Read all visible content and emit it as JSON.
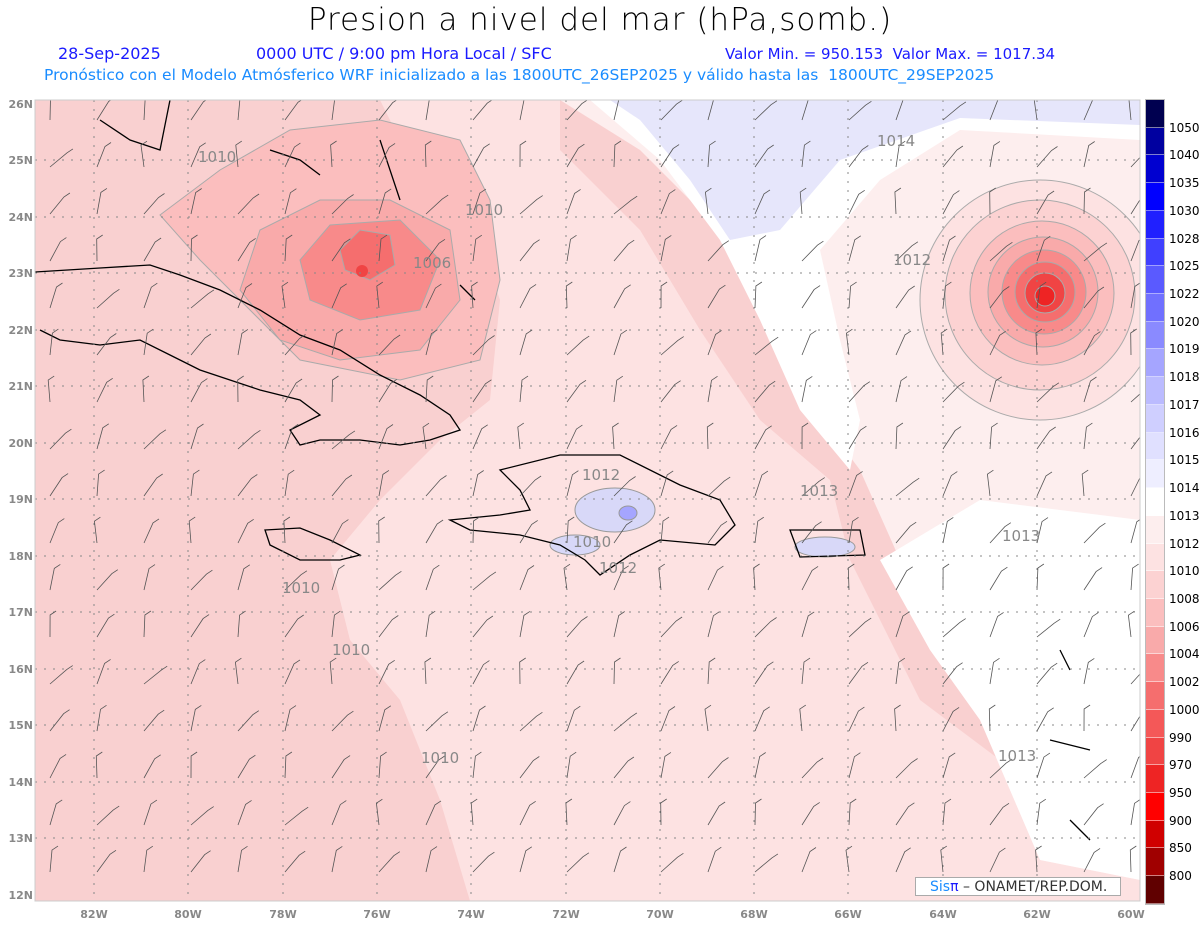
{
  "header": {
    "title": "Presion a nivel del mar (hPa,somb.)",
    "date": "28-Sep-2025",
    "time": "0000 UTC / 9:00 pm Hora Local / SFC",
    "min_max": "Valor Min. = 950.153  Valor Max. = 1017.34",
    "forecast_info": "Pronóstico con el Modelo Atmósferico WRF inicializado a las 1800UTC_26SEP2025 y válido hasta las  1800UTC_29SEP2025"
  },
  "axes": {
    "lat_labels": [
      "26N",
      "25N",
      "24N",
      "23N",
      "22N",
      "21N",
      "20N",
      "19N",
      "18N",
      "17N",
      "16N",
      "15N",
      "14N",
      "13N",
      "12N"
    ],
    "lon_labels": [
      "82W",
      "80W",
      "78W",
      "76W",
      "74W",
      "72W",
      "70W",
      "68W",
      "66W",
      "64W",
      "62W",
      "60W"
    ]
  },
  "contour_labels": [
    "1010",
    "1010",
    "1006",
    "1014",
    "1012",
    "1012",
    "1013",
    "1013",
    "1012",
    "1010",
    "1010",
    "1010",
    "1013",
    "1010"
  ],
  "colorbar": {
    "labels": [
      "1050",
      "1040",
      "1035",
      "1030",
      "1028",
      "1025",
      "1022",
      "1020",
      "1019",
      "1018",
      "1017",
      "1016",
      "1015",
      "1014",
      "1013",
      "1012",
      "1010",
      "1008",
      "1006",
      "1004",
      "1002",
      "1000",
      "990",
      "970",
      "950",
      "900",
      "850",
      "800"
    ],
    "colors": [
      "#000050",
      "#0000a0",
      "#0000d0",
      "#0000ff",
      "#2020ff",
      "#4040ff",
      "#5a5aff",
      "#7070ff",
      "#8a8aff",
      "#a5a5ff",
      "#bbbbff",
      "#cfcfff",
      "#e0e0ff",
      "#eeeeff",
      "#ffffff",
      "#fdeeee",
      "#fde2e2",
      "#fcd2d2",
      "#fbbebe",
      "#f9aaaa",
      "#f88a8a",
      "#f56e6e",
      "#f45858",
      "#f04444",
      "#ee2424",
      "#ff0000",
      "#d00000",
      "#a00000",
      "#600000"
    ]
  },
  "credit": {
    "sis": "Sis",
    "pi": "π",
    "org": "– ONAMET/REP.DOM."
  }
}
